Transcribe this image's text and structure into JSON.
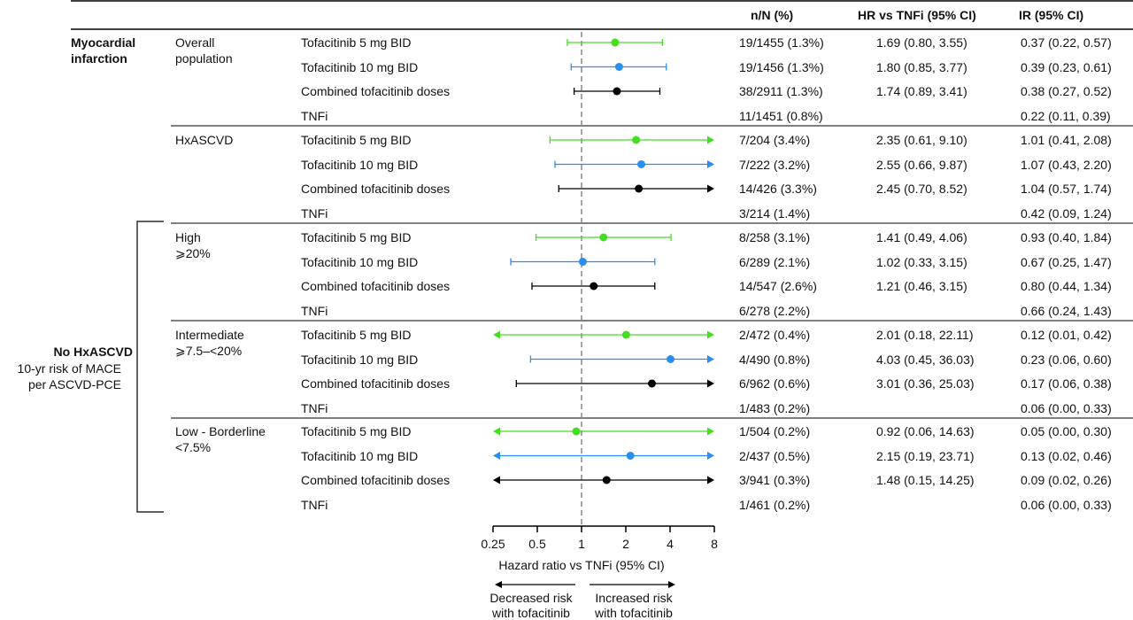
{
  "chart_data": {
    "type": "forest",
    "header": {
      "col_nN": "n/N (%)",
      "col_hr": "HR vs TNFi (95% CI)",
      "col_ir": "IR (95% CI)"
    },
    "outcome": "Myocardial infarction",
    "no_hx_label": "No HxASCVD",
    "no_hx_sub1": "10-yr risk of MACE",
    "no_hx_sub2": "per ASCVD-PCE",
    "x_scale": "log2",
    "x_ticks": [
      "0.25",
      "0.5",
      "1",
      "2",
      "4",
      "8"
    ],
    "x_tick_values": [
      0.25,
      0.5,
      1,
      2,
      4,
      8
    ],
    "xlim": [
      0.25,
      8
    ],
    "reference_line": 1,
    "xlabel": "Hazard ratio vs TNFi (95% CI)",
    "left_arrow_label_1": "Decreased risk",
    "left_arrow_label_2": "with tofacitinib",
    "right_arrow_label_1": "Increased risk",
    "right_arrow_label_2": "with tofacitinib",
    "colors": {
      "5mg": "#44dd22",
      "10mg": "#2a8ef0",
      "combined": "#000000"
    },
    "groups": [
      {
        "label1": "Overall",
        "label2": "population",
        "rows": [
          {
            "treatment": "Tofacitinib 5 mg BID",
            "dose": "5mg",
            "nN": "19/1455 (1.3%)",
            "hr_text": "1.69 (0.80, 3.55)",
            "ir": "0.37 (0.22, 0.57)",
            "hr": 1.69,
            "lo": 0.8,
            "hi": 3.55
          },
          {
            "treatment": "Tofacitinib 10 mg BID",
            "dose": "10mg",
            "nN": "19/1456 (1.3%)",
            "hr_text": "1.80 (0.85, 3.77)",
            "ir": "0.39 (0.23, 0.61)",
            "hr": 1.8,
            "lo": 0.85,
            "hi": 3.77
          },
          {
            "treatment": "Combined tofacitinib doses",
            "dose": "combined",
            "nN": "38/2911 (1.3%)",
            "hr_text": "1.74 (0.89, 3.41)",
            "ir": "0.38 (0.27, 0.52)",
            "hr": 1.74,
            "lo": 0.89,
            "hi": 3.41
          },
          {
            "treatment": "TNFi",
            "dose": "tnfi",
            "nN": "11/1451 (0.8%)",
            "hr_text": "",
            "ir": "0.22 (0.11, 0.39)"
          }
        ]
      },
      {
        "label1": "HxASCVD",
        "label2": "",
        "rows": [
          {
            "treatment": "Tofacitinib 5 mg BID",
            "dose": "5mg",
            "nN": "7/204 (3.4%)",
            "hr_text": "2.35 (0.61, 9.10)",
            "ir": "1.01 (0.41, 2.08)",
            "hr": 2.35,
            "lo": 0.61,
            "hi": 9.1
          },
          {
            "treatment": "Tofacitinib 10 mg BID",
            "dose": "10mg",
            "nN": "7/222 (3.2%)",
            "hr_text": "2.55 (0.66, 9.87)",
            "ir": "1.07 (0.43, 2.20)",
            "hr": 2.55,
            "lo": 0.66,
            "hi": 9.87
          },
          {
            "treatment": "Combined tofacitinib doses",
            "dose": "combined",
            "nN": "14/426 (3.3%)",
            "hr_text": "2.45 (0.70, 8.52)",
            "ir": "1.04 (0.57, 1.74)",
            "hr": 2.45,
            "lo": 0.7,
            "hi": 8.52
          },
          {
            "treatment": "TNFi",
            "dose": "tnfi",
            "nN": "3/214 (1.4%)",
            "hr_text": "",
            "ir": "0.42 (0.09, 1.24)"
          }
        ]
      },
      {
        "label1": "High",
        "label2": "⩾20%",
        "rows": [
          {
            "treatment": "Tofacitinib 5 mg BID",
            "dose": "5mg",
            "nN": "8/258 (3.1%)",
            "hr_text": "1.41 (0.49, 4.06)",
            "ir": "0.93 (0.40, 1.84)",
            "hr": 1.41,
            "lo": 0.49,
            "hi": 4.06
          },
          {
            "treatment": "Tofacitinib 10 mg BID",
            "dose": "10mg",
            "nN": "6/289 (2.1%)",
            "hr_text": "1.02 (0.33, 3.15)",
            "ir": "0.67 (0.25, 1.47)",
            "hr": 1.02,
            "lo": 0.33,
            "hi": 3.15
          },
          {
            "treatment": "Combined tofacitinib doses",
            "dose": "combined",
            "nN": "14/547 (2.6%)",
            "hr_text": "1.21 (0.46, 3.15)",
            "ir": "0.80 (0.44, 1.34)",
            "hr": 1.21,
            "lo": 0.46,
            "hi": 3.15
          },
          {
            "treatment": "TNFi",
            "dose": "tnfi",
            "nN": "6/278 (2.2%)",
            "hr_text": "",
            "ir": "0.66 (0.24, 1.43)"
          }
        ]
      },
      {
        "label1": "Intermediate",
        "label2": "⩾7.5–<20%",
        "rows": [
          {
            "treatment": "Tofacitinib 5 mg BID",
            "dose": "5mg",
            "nN": "2/472 (0.4%)",
            "hr_text": "2.01 (0.18, 22.11)",
            "ir": "0.12 (0.01, 0.42)",
            "hr": 2.01,
            "lo": 0.18,
            "hi": 22.11
          },
          {
            "treatment": "Tofacitinib 10 mg BID",
            "dose": "10mg",
            "nN": "4/490 (0.8%)",
            "hr_text": "4.03 (0.45, 36.03)",
            "ir": "0.23 (0.06, 0.60)",
            "hr": 4.03,
            "lo": 0.45,
            "hi": 36.03
          },
          {
            "treatment": "Combined tofacitinib doses",
            "dose": "combined",
            "nN": "6/962 (0.6%)",
            "hr_text": "3.01 (0.36, 25.03)",
            "ir": "0.17 (0.06, 0.38)",
            "hr": 3.01,
            "lo": 0.36,
            "hi": 25.03
          },
          {
            "treatment": "TNFi",
            "dose": "tnfi",
            "nN": "1/483 (0.2%)",
            "hr_text": "",
            "ir": "0.06 (0.00, 0.33)"
          }
        ]
      },
      {
        "label1": "Low - Borderline",
        "label2": "<7.5%",
        "rows": [
          {
            "treatment": "Tofacitinib 5 mg BID",
            "dose": "5mg",
            "nN": "1/504 (0.2%)",
            "hr_text": "0.92 (0.06, 14.63)",
            "ir": "0.05 (0.00, 0.30)",
            "hr": 0.92,
            "lo": 0.06,
            "hi": 14.63
          },
          {
            "treatment": "Tofacitinib 10 mg BID",
            "dose": "10mg",
            "nN": "2/437 (0.5%)",
            "hr_text": "2.15 (0.19, 23.71)",
            "ir": "0.13 (0.02, 0.46)",
            "hr": 2.15,
            "lo": 0.19,
            "hi": 23.71
          },
          {
            "treatment": "Combined tofacitinib doses",
            "dose": "combined",
            "nN": "3/941 (0.3%)",
            "hr_text": "1.48 (0.15, 14.25)",
            "ir": "0.09 (0.02, 0.26)",
            "hr": 1.48,
            "lo": 0.15,
            "hi": 14.25
          },
          {
            "treatment": "TNFi",
            "dose": "tnfi",
            "nN": "1/461 (0.2%)",
            "hr_text": "",
            "ir": "0.06 (0.00, 0.33)"
          }
        ]
      }
    ]
  }
}
